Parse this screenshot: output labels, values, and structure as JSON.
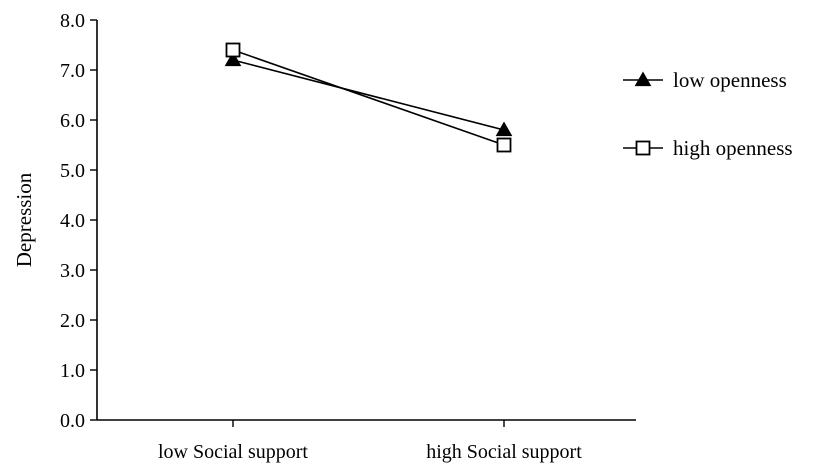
{
  "chart_data": {
    "type": "line",
    "categories": [
      "low Social support",
      "high Social support"
    ],
    "series": [
      {
        "name": "low openness",
        "marker": "filled-triangle",
        "values": [
          7.2,
          5.8
        ]
      },
      {
        "name": "high openness",
        "marker": "open-square",
        "values": [
          7.4,
          5.5
        ]
      }
    ],
    "xlabel": "",
    "ylabel": "Depression",
    "ylim": [
      0,
      8
    ],
    "yticks": [
      "0.0",
      "1.0",
      "2.0",
      "3.0",
      "4.0",
      "5.0",
      "6.0",
      "7.0",
      "8.0"
    ],
    "grid": false,
    "legend_position": "right",
    "colors": {
      "line": "#000000",
      "background": "#ffffff"
    }
  }
}
